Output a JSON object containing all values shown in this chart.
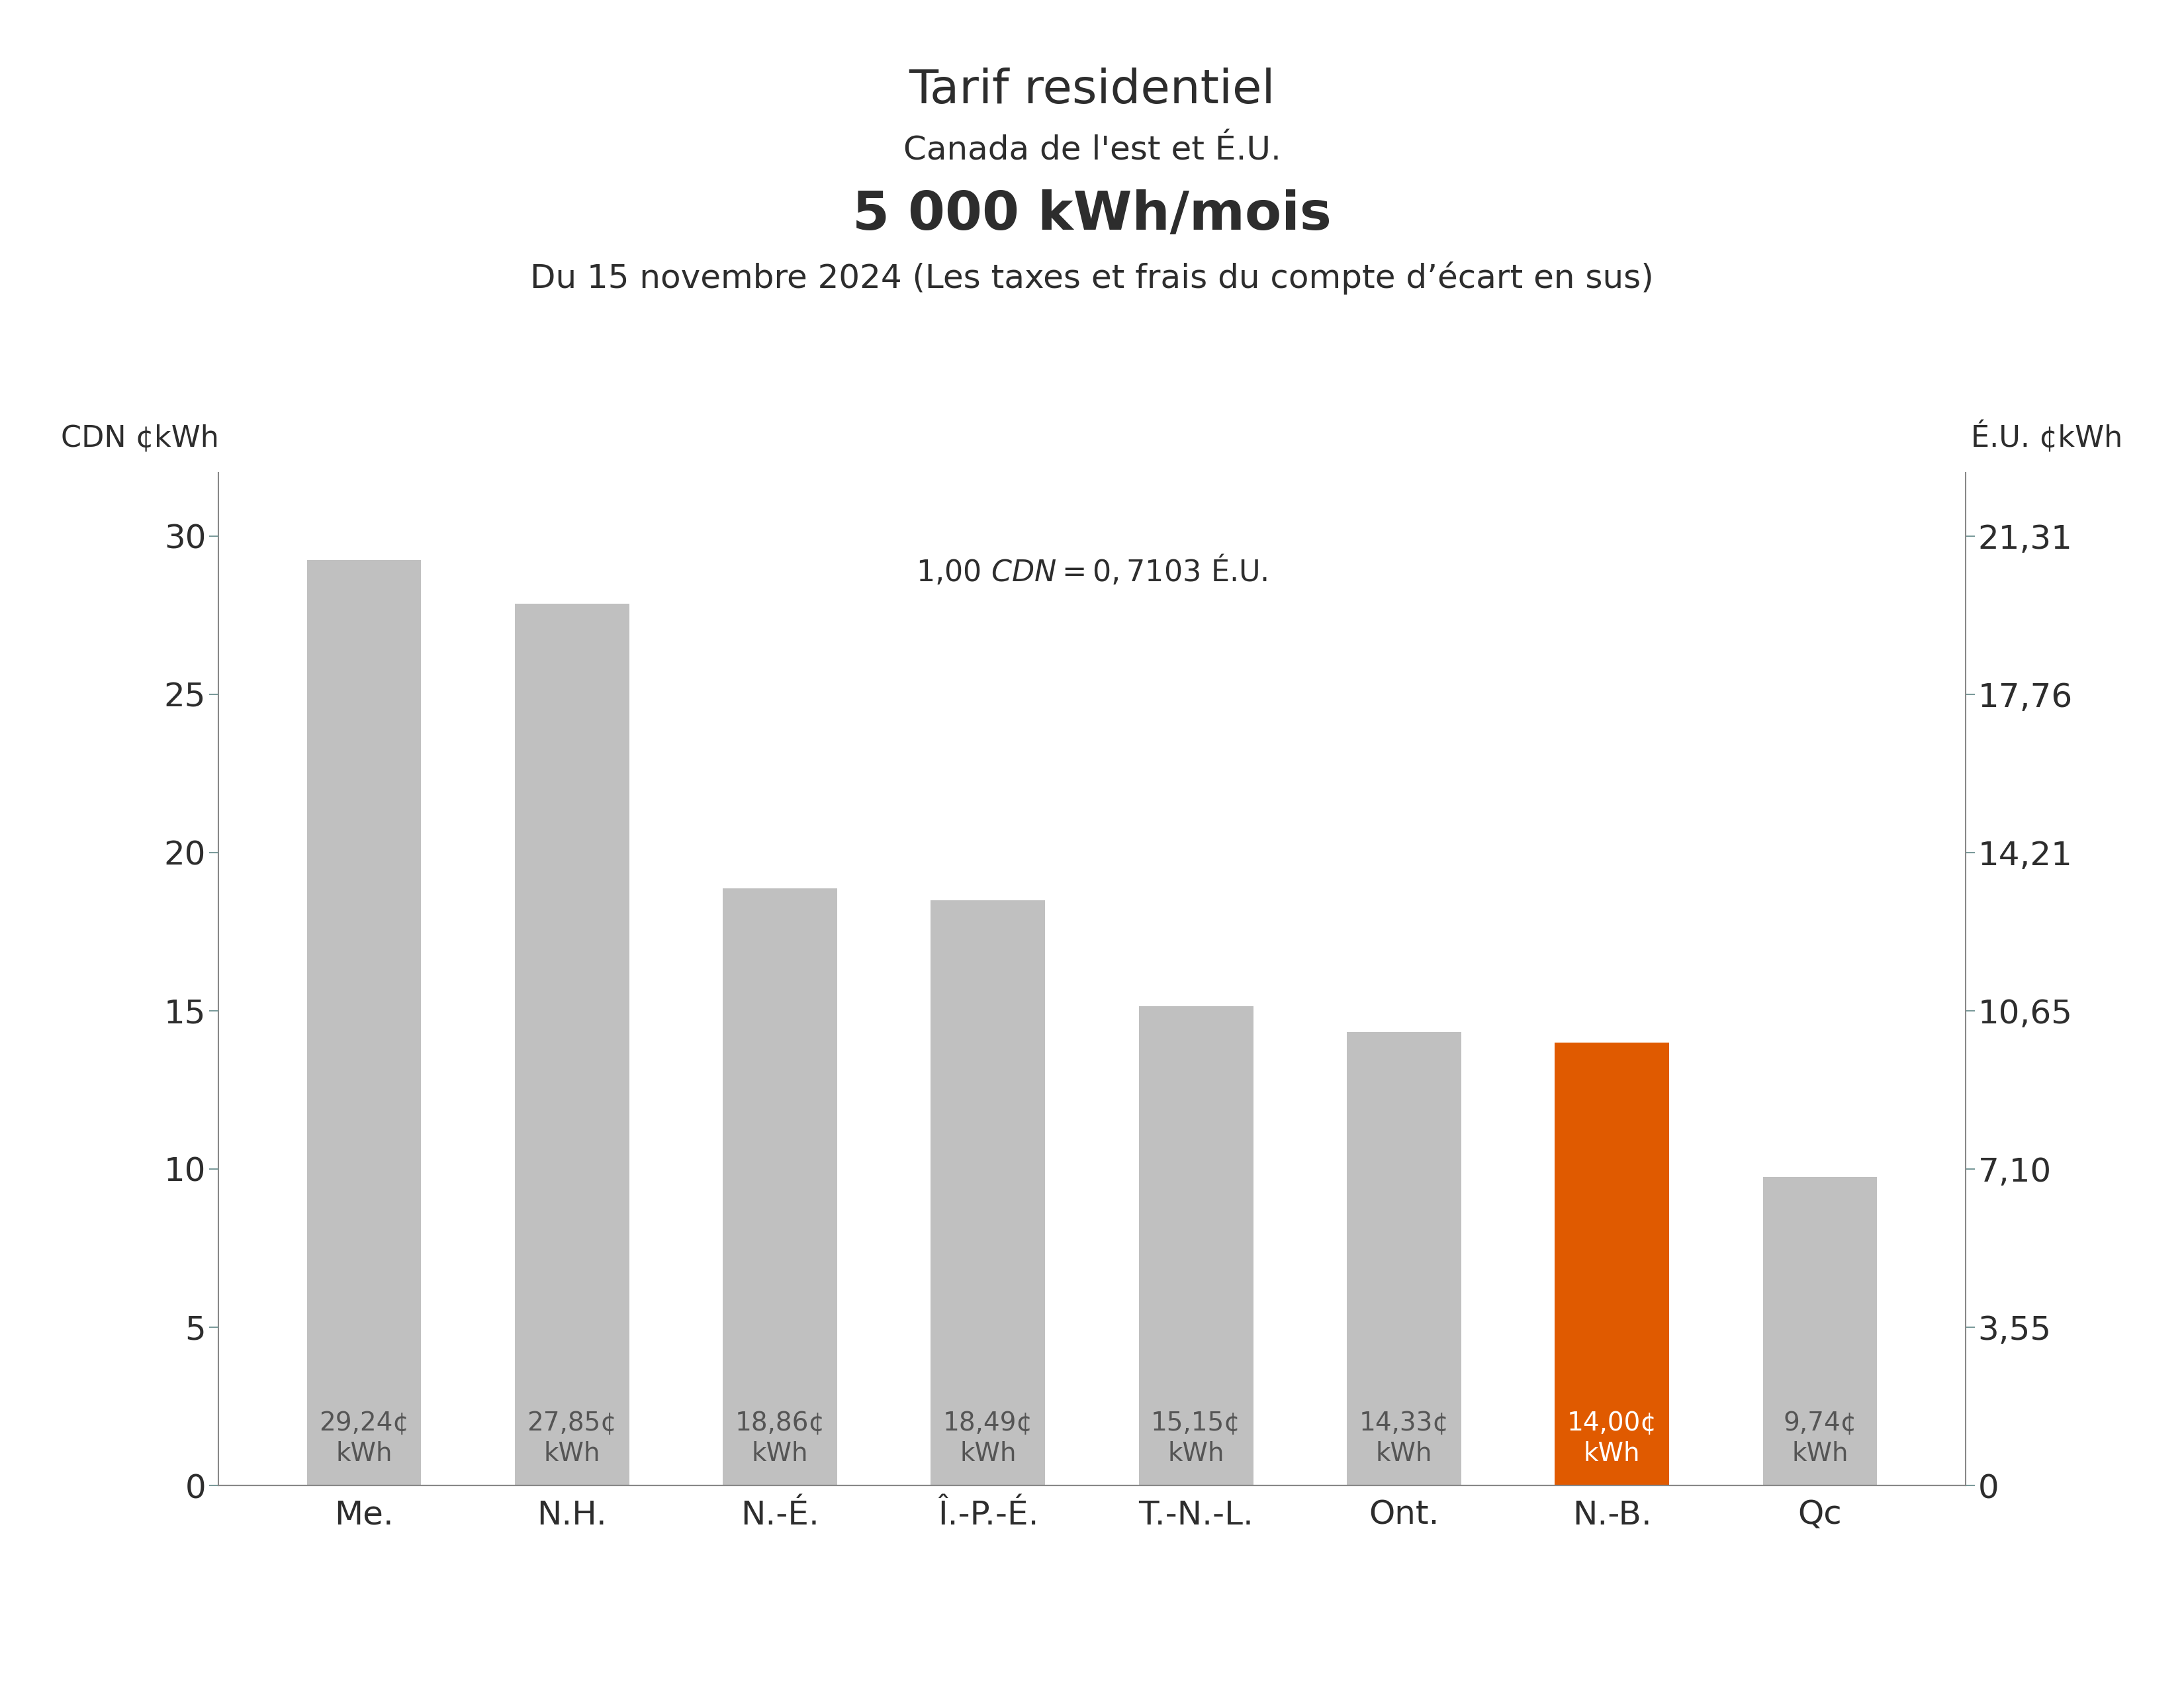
{
  "title_line1": "Tarif residentiel",
  "title_line2": "Canada de l'est et É.U.",
  "title_line3": "5 000 kWh/mois",
  "title_line4": "Du 15 novembre 2024 (Les taxes et frais du compte d’écart en sus)",
  "exchange_note": "1,00 $ CDN = 0,7103 $ É.U.",
  "ylabel_left": "CDN ¢kWh",
  "ylabel_right": "É.U. ¢kWh",
  "categories": [
    "Me.",
    "N.H.",
    "N.-É.",
    "Î.-P.-É.",
    "T.-N.-L.",
    "Ont.",
    "N.-B.",
    "Qc"
  ],
  "values": [
    29.24,
    27.85,
    18.86,
    18.49,
    15.15,
    14.33,
    14.0,
    9.74
  ],
  "bar_labels": [
    "29,24¢\nkWh",
    "27,85¢\nkWh",
    "18,86¢\nkWh",
    "18,49¢\nkWh",
    "15,15¢\nkWh",
    "14,33¢\nkWh",
    "14,00¢\nkWh",
    "9,74¢\nkWh"
  ],
  "bar_colors": [
    "#c0c0c0",
    "#c0c0c0",
    "#c0c0c0",
    "#c0c0c0",
    "#c0c0c0",
    "#c0c0c0",
    "#e05a00",
    "#c0c0c0"
  ],
  "highlight_index": 6,
  "ylim_left": [
    0,
    32
  ],
  "yticks_left": [
    0,
    5,
    10,
    15,
    20,
    25,
    30
  ],
  "yticks_right_labels": [
    "0",
    "3,55",
    "7,10",
    "10,65",
    "14,21",
    "17,76",
    "21,31"
  ],
  "yticks_right_values": [
    0,
    5,
    10,
    15,
    20,
    25,
    30
  ],
  "background_color": "#ffffff",
  "text_color": "#2d2d2d",
  "bar_label_color_default": "#555555",
  "bar_label_color_highlight": "#ffffff",
  "title_fontsize": 52,
  "subtitle_fontsize": 36,
  "bold_title_fontsize": 58,
  "axis_label_fontsize": 32,
  "tick_fontsize": 36,
  "bar_label_fontsize": 28,
  "note_fontsize": 32,
  "cat_fontsize": 36,
  "spine_color": "#888888",
  "tick_color": "#7a9a9a"
}
